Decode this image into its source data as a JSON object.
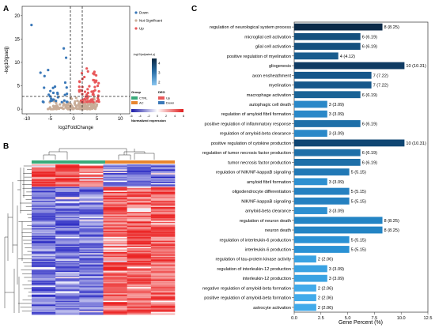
{
  "panels": {
    "a": "A",
    "b": "B",
    "c": "C"
  },
  "volcano": {
    "ylabel": "-log10(padj)",
    "xlabel": "log2FoldChange",
    "x_ticks": [
      "-10",
      "-5",
      "0",
      "5",
      "10"
    ],
    "y_ticks": [
      "0",
      "5",
      "10",
      "15",
      "20"
    ],
    "legend": [
      {
        "label": "Down",
        "color": "#3a78b8"
      },
      {
        "label": "Not Significant",
        "color": "#c9ad98"
      },
      {
        "label": "Up",
        "color": "#e8585a"
      }
    ]
  },
  "colorbar": {
    "title": "-log10(adjusted p)",
    "ticks": [
      "4",
      "3",
      "2"
    ]
  },
  "heat_legend": {
    "group_title": "Group",
    "groups": [
      {
        "label": "CTRL",
        "color": "#3aaa7a"
      },
      {
        "label": "AC",
        "color": "#e8852e"
      }
    ],
    "deg_title": "DEG",
    "degs": [
      {
        "label": "Up",
        "color": "#e8585a"
      },
      {
        "label": "Down",
        "color": "#3a78b8"
      }
    ],
    "scale_title": "Normalized expression",
    "scale_ticks": [
      "-6",
      "-4",
      "-2",
      "0",
      "2",
      "4",
      "6"
    ]
  },
  "chart_data": {
    "type": "bar",
    "orientation": "horizontal",
    "xlabel": "Gene Percent (%)",
    "xlim": [
      0,
      12.5
    ],
    "x_ticks": [
      "0.0",
      "2.5",
      "5.0",
      "7.5",
      "10.0",
      "12.5"
    ],
    "categories": [
      "regulation of neurological system process",
      "microglial cell activation",
      "glial cell activation",
      "positive regulation of myelination",
      "gliogenesis",
      "axon ensheathment",
      "myelination",
      "macrophage activation",
      "autophagic cell death",
      "regulation of amyloid fibril formation",
      "positive regulation of inflammatory response",
      "regulation of amyloid-beta clearance",
      "positive regulation of cytokine production",
      "regulation of tumor necrosis factor production",
      "tumor necrosis factor production",
      "regulation of NIK/NF-kappaB signaling",
      "amyloid fibril formation",
      "oligodendrocyte differentiation",
      "NIK/NF-kappaB signaling",
      "amyloid-beta clearance",
      "regulation of neuron death",
      "neuron death",
      "regulation of interleukin-6 production",
      "interleukin-6 production",
      "regulation of tau-protein kinase activity",
      "regulation of interleukin-12 production",
      "interleukin-12 production",
      "negative regulation of amyloid-beta formation",
      "positive regulation of amyloid-beta formation",
      "astrocyte activation"
    ],
    "values": [
      8.25,
      6.19,
      6.19,
      4.12,
      10.31,
      7.22,
      7.22,
      6.19,
      3.09,
      3.09,
      6.19,
      3.09,
      10.31,
      6.19,
      6.19,
      5.15,
      3.09,
      5.15,
      5.15,
      3.09,
      8.25,
      8.25,
      5.15,
      5.15,
      2.06,
      3.09,
      3.09,
      2.06,
      2.06,
      2.06
    ],
    "labels": [
      "8 (8.25)",
      "6 (6.19)",
      "6 (6.19)",
      "4 (4.12)",
      "10 (10.31)",
      "7 (7.22)",
      "7 (7.22)",
      "6 (6.19)",
      "3 (3.09)",
      "3 (3.09)",
      "6 (6.19)",
      "3 (3.09)",
      "10 (10.31)",
      "6 (6.19)",
      "6 (6.19)",
      "5 (5.15)",
      "3 (3.09)",
      "5 (5.15)",
      "5 (5.15)",
      "3 (3.09)",
      "8 (8.25)",
      "8 (8.25)",
      "5 (5.15)",
      "5 (5.15)",
      "2 (2.06)",
      "3 (3.09)",
      "3 (3.09)",
      "2 (2.06)",
      "2 (2.06)",
      "2 (2.06)"
    ],
    "colors": [
      "#0b2a48",
      "#15507e",
      "#15507e",
      "#1a5c8d",
      "#0f3b63",
      "#16578a",
      "#16578a",
      "#1a6396",
      "#2a88c8",
      "#2a88c8",
      "#1e6fa8",
      "#2a88c8",
      "#0f4673",
      "#1e6fa8",
      "#1e6fa8",
      "#2178b5",
      "#2d8fd0",
      "#2580c0",
      "#2580c0",
      "#2d8fd0",
      "#2384c4",
      "#2384c4",
      "#2a91d4",
      "#2a91d4",
      "#3aa2e2",
      "#3aa2e2",
      "#3aa2e2",
      "#42aaea",
      "#42aaea",
      "#42aaea"
    ],
    "grid": false
  }
}
